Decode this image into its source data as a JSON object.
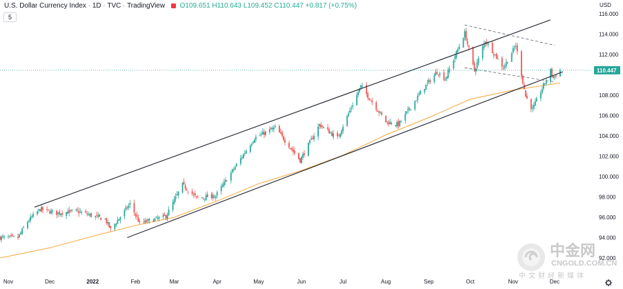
{
  "header": {
    "symbol": "U.S. Dollar Currency Index",
    "interval": "1D",
    "exchange": "TVC",
    "source": "TradingView",
    "ohlc": "O109.651 H110.643 L109.452 C110.447 +0.817 (+0.75%)",
    "interval_box": "5",
    "currency": "USD"
  },
  "colors": {
    "up": "#26a69a",
    "down": "#ef5350",
    "ma": "#f7a635",
    "channel": "#2a2e39",
    "last_price": "#26a69a",
    "header_values": "#22ab94"
  },
  "last_price_label": "110.447",
  "watermark": {
    "cn": "中金网",
    "en": "CNGOLD.COM.CN",
    "sub": "中文财经新媒体"
  },
  "chart_data": {
    "type": "candlestick",
    "title": "U.S. Dollar Currency Index · 1D · TVC",
    "y_ticks": [
      "116.000",
      "114.000",
      "112.000",
      "110.000",
      "108.000",
      "106.000",
      "104.000",
      "102.000",
      "100.000",
      "98.000",
      "96.000",
      "94.000",
      "92.000"
    ],
    "x_ticks": [
      "Nov",
      "Dec",
      "2022",
      "Feb",
      "Mar",
      "Apr",
      "May",
      "Jun",
      "Jul",
      "Aug",
      "Sep",
      "Oct",
      "Nov",
      "Dec"
    ],
    "ylim": [
      91.5,
      116.8
    ],
    "x_range": [
      "2021-10-26",
      "2022-12-28"
    ],
    "close_path": [
      [
        "2021-10-26",
        94.0
      ],
      [
        "2021-11-08",
        94.0
      ],
      [
        "2021-11-15",
        95.6
      ],
      [
        "2021-11-24",
        96.8
      ],
      [
        "2021-12-06",
        96.4
      ],
      [
        "2021-12-20",
        96.6
      ],
      [
        "2022-01-10",
        95.8
      ],
      [
        "2022-01-14",
        94.8
      ],
      [
        "2022-01-28",
        97.3
      ],
      [
        "2022-02-04",
        95.4
      ],
      [
        "2022-02-23",
        96.1
      ],
      [
        "2022-03-07",
        99.2
      ],
      [
        "2022-03-17",
        97.9
      ],
      [
        "2022-03-31",
        98.1
      ],
      [
        "2022-04-28",
        103.8
      ],
      [
        "2022-05-13",
        104.8
      ],
      [
        "2022-05-31",
        101.6
      ],
      [
        "2022-06-14",
        105.1
      ],
      [
        "2022-06-27",
        103.8
      ],
      [
        "2022-07-14",
        108.9
      ],
      [
        "2022-08-01",
        105.4
      ],
      [
        "2022-08-10",
        105.1
      ],
      [
        "2022-08-29",
        108.8
      ],
      [
        "2022-09-07",
        110.3
      ],
      [
        "2022-09-13",
        109.6
      ],
      [
        "2022-09-27",
        114.1
      ],
      [
        "2022-10-04",
        110.4
      ],
      [
        "2022-10-12",
        113.4
      ],
      [
        "2022-10-25",
        110.7
      ],
      [
        "2022-11-03",
        112.9
      ],
      [
        "2022-11-10",
        107.9
      ],
      [
        "2022-11-15",
        106.6
      ],
      [
        "2022-11-28",
        110.4
      ],
      [
        "2022-11-30",
        109.7
      ],
      [
        "2022-12-05",
        110.447
      ]
    ],
    "moving_average": [
      [
        "2021-10-26",
        92.0
      ],
      [
        "2021-12-01",
        93.0
      ],
      [
        "2022-01-03",
        94.2
      ],
      [
        "2022-02-01",
        95.2
      ],
      [
        "2022-03-01",
        96.0
      ],
      [
        "2022-04-01",
        97.6
      ],
      [
        "2022-05-01",
        99.3
      ],
      [
        "2022-06-01",
        100.6
      ],
      [
        "2022-07-01",
        102.1
      ],
      [
        "2022-08-01",
        104.1
      ],
      [
        "2022-09-01",
        105.8
      ],
      [
        "2022-10-01",
        107.6
      ],
      [
        "2022-11-01",
        108.5
      ],
      [
        "2022-12-05",
        109.2
      ]
    ],
    "channel_upper": [
      [
        "2021-11-20",
        97.0
      ],
      [
        "2022-11-28",
        115.4
      ]
    ],
    "channel_lower": [
      [
        "2022-01-26",
        94.0
      ],
      [
        "2022-12-07",
        110.3
      ]
    ],
    "wedge_upper": [
      [
        "2022-09-27",
        114.9
      ],
      [
        "2022-12-01",
        112.9
      ]
    ],
    "wedge_lower": [
      [
        "2022-09-27",
        110.7
      ],
      [
        "2022-12-01",
        109.3
      ]
    ],
    "last_close": 110.447,
    "grid": false
  }
}
